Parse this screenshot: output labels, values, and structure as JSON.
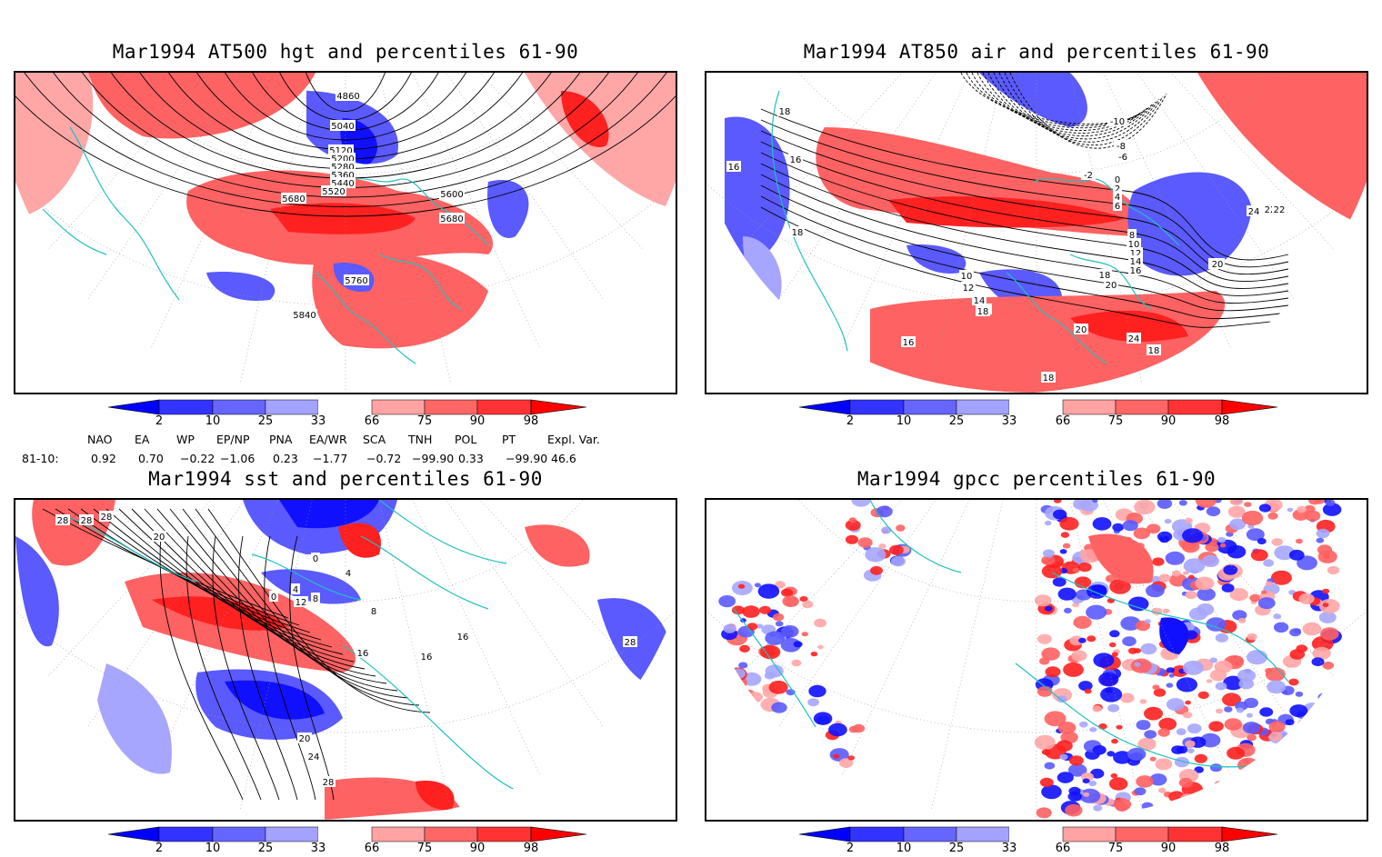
{
  "panels": [
    {
      "title": "Mar1994 AT500 hgt and percentiles 61-90",
      "contour_labels": [
        "4860",
        "5040",
        "5120",
        "5200",
        "5280",
        "5360",
        "5440",
        "5520",
        "5600",
        "5680",
        "5680",
        "5760",
        "5840"
      ]
    },
    {
      "title": "Mar1994 AT850 air and percentiles 61-90",
      "contour_labels": [
        "18",
        "16",
        "16",
        "18",
        "10",
        "12",
        "14",
        "16",
        "18",
        "-10",
        "-8",
        "-6",
        "-2",
        "0",
        "2",
        "4",
        "6",
        "8",
        "10",
        "12",
        "14",
        "16",
        "18",
        "20",
        "22",
        "24",
        "22",
        "20",
        "24",
        "18",
        "20",
        "22",
        "16",
        "18"
      ]
    },
    {
      "title": "Mar1994 sst and percentiles 61-90",
      "contour_labels": [
        "28",
        "28",
        "28",
        "20",
        "0",
        "4",
        "8",
        "12",
        "0",
        "4",
        "8",
        "16",
        "16",
        "16",
        "20",
        "24",
        "28",
        "28"
      ]
    },
    {
      "title": "Mar1994 gpcc percentiles 61-90",
      "contour_labels": []
    }
  ],
  "colorbar": {
    "ticks": [
      "2",
      "10",
      "25",
      "33",
      "66",
      "75",
      "90",
      "98"
    ],
    "colors": [
      "#0000ff",
      "#3333ff",
      "#6666ff",
      "#a3a3ff",
      "#ffffff",
      "#ffa3a3",
      "#ff6666",
      "#ff3333",
      "#ff0000"
    ]
  },
  "map_colors": {
    "coast": "#20c0c0",
    "strong_red": "#ff2020",
    "mid_red": "#ff6262",
    "light_red": "#ffa6a6",
    "strong_blue": "#1010ff",
    "mid_blue": "#5a5aff",
    "light_blue": "#a6a6ff"
  },
  "indices": {
    "headers": [
      "NAO",
      "EA",
      "WP",
      "EP/NP",
      "PNA",
      "EA/WR",
      "SCA",
      "TNH",
      "POL",
      "PT",
      "Expl. Var."
    ],
    "row_label": "81-10:",
    "values": [
      "0.92",
      "0.70",
      "−0.22",
      "−1.06",
      "0.23",
      "−1.77",
      "−0.72",
      "−99.90",
      "0.33",
      "−99.90",
      "46.6"
    ]
  }
}
